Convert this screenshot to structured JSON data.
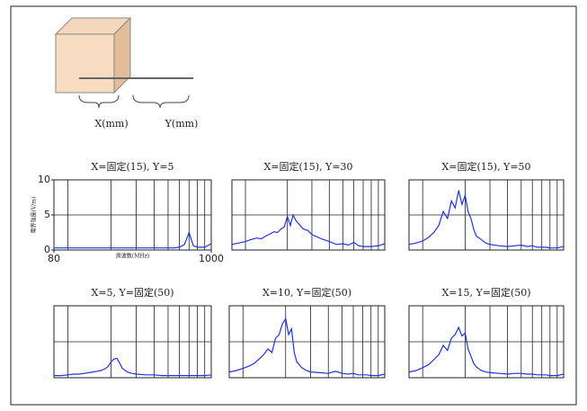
{
  "diagram": {
    "x_label": "X(mm)",
    "y_label": "Y(mm)"
  },
  "chart_data": [
    {
      "type": "line",
      "title": "X=固定(15), Y=5",
      "log_x": true,
      "xlim": [
        80,
        1000
      ],
      "ylim": [
        0,
        10
      ],
      "xticks": [
        80,
        1000
      ],
      "yticks": [
        0,
        5,
        10
      ],
      "x_grid": [
        100,
        200,
        300,
        400,
        500,
        600,
        700,
        800,
        900
      ],
      "y_grid": [
        5
      ],
      "xlabel": "周波数(MHz)",
      "ylabel": "電界強度(V/m)",
      "color": "#2233dd",
      "x": [
        80,
        90,
        100,
        110,
        120,
        130,
        140,
        150,
        160,
        170,
        180,
        190,
        200,
        210,
        220,
        230,
        240,
        260,
        280,
        300,
        350,
        400,
        450,
        500,
        550,
        600,
        650,
        700,
        750,
        800,
        900,
        1000
      ],
      "values": [
        0.3,
        0.3,
        0.3,
        0.3,
        0.3,
        0.3,
        0.3,
        0.3,
        0.3,
        0.3,
        0.3,
        0.3,
        0.3,
        0.3,
        0.3,
        0.3,
        0.3,
        0.3,
        0.3,
        0.3,
        0.3,
        0.3,
        0.3,
        0.3,
        0.3,
        0.4,
        0.8,
        2.5,
        0.6,
        0.4,
        0.4,
        0.9
      ]
    },
    {
      "type": "line",
      "title": "X=固定(15), Y=30",
      "log_x": true,
      "xlim": [
        80,
        1000
      ],
      "ylim": [
        0,
        10
      ],
      "x_grid": [
        100,
        200,
        300,
        400,
        500,
        600,
        700,
        800,
        900
      ],
      "y_grid": [
        5
      ],
      "color": "#2233dd",
      "x": [
        80,
        90,
        100,
        110,
        120,
        130,
        140,
        150,
        160,
        170,
        180,
        190,
        200,
        210,
        220,
        230,
        240,
        260,
        280,
        300,
        350,
        400,
        450,
        500,
        550,
        600,
        650,
        700,
        750,
        800,
        900,
        1000
      ],
      "values": [
        0.8,
        1.0,
        1.2,
        1.5,
        1.7,
        1.6,
        2.0,
        2.3,
        2.6,
        2.5,
        3.0,
        3.3,
        4.8,
        3.5,
        5.0,
        4.2,
        3.8,
        3.0,
        2.8,
        2.2,
        1.6,
        1.2,
        0.8,
        0.9,
        0.7,
        1.1,
        0.6,
        0.5,
        0.5,
        0.5,
        0.6,
        0.9
      ]
    },
    {
      "type": "line",
      "title": "X=固定(15), Y=50",
      "log_x": true,
      "xlim": [
        80,
        1000
      ],
      "ylim": [
        0,
        10
      ],
      "x_grid": [
        100,
        200,
        300,
        400,
        500,
        600,
        700,
        800,
        900
      ],
      "y_grid": [
        5
      ],
      "color": "#2233dd",
      "x": [
        80,
        90,
        100,
        110,
        120,
        130,
        140,
        150,
        160,
        170,
        180,
        190,
        200,
        210,
        220,
        230,
        240,
        260,
        280,
        300,
        350,
        400,
        450,
        500,
        550,
        600,
        650,
        700,
        750,
        800,
        900,
        1000
      ],
      "values": [
        0.8,
        1.0,
        1.3,
        1.8,
        2.5,
        3.5,
        5.5,
        4.5,
        7.0,
        6.0,
        8.5,
        6.5,
        7.8,
        5.5,
        4.5,
        3.0,
        2.0,
        1.5,
        1.0,
        0.8,
        0.6,
        0.5,
        0.6,
        0.7,
        0.5,
        0.6,
        0.4,
        0.4,
        0.4,
        0.3,
        0.3,
        0.5
      ]
    },
    {
      "type": "line",
      "title": "X=5, Y=固定(50)",
      "log_x": true,
      "xlim": [
        80,
        1000
      ],
      "ylim": [
        0,
        10
      ],
      "x_grid": [
        100,
        200,
        300,
        400,
        500,
        600,
        700,
        800,
        900
      ],
      "y_grid": [
        5
      ],
      "color": "#2233dd",
      "x": [
        80,
        90,
        100,
        110,
        120,
        130,
        140,
        150,
        160,
        170,
        180,
        190,
        200,
        210,
        220,
        230,
        240,
        260,
        280,
        300,
        350,
        400,
        450,
        500,
        550,
        600,
        650,
        700,
        750,
        800,
        900,
        1000
      ],
      "values": [
        0.3,
        0.3,
        0.4,
        0.5,
        0.5,
        0.6,
        0.7,
        0.8,
        0.9,
        1.0,
        1.2,
        1.5,
        2.2,
        2.6,
        2.7,
        2.0,
        1.3,
        0.8,
        0.6,
        0.5,
        0.4,
        0.4,
        0.3,
        0.3,
        0.3,
        0.3,
        0.3,
        0.3,
        0.3,
        0.3,
        0.3,
        0.4
      ]
    },
    {
      "type": "line",
      "title": "X=10, Y=固定(50)",
      "log_x": true,
      "xlim": [
        80,
        1000
      ],
      "ylim": [
        0,
        10
      ],
      "x_grid": [
        100,
        200,
        300,
        400,
        500,
        600,
        700,
        800,
        900
      ],
      "y_grid": [
        5
      ],
      "color": "#2233dd",
      "x": [
        80,
        90,
        100,
        110,
        120,
        130,
        140,
        150,
        160,
        170,
        180,
        190,
        200,
        210,
        220,
        230,
        240,
        260,
        280,
        300,
        350,
        400,
        450,
        500,
        550,
        600,
        650,
        700,
        750,
        800,
        900,
        1000
      ],
      "values": [
        0.8,
        1.0,
        1.3,
        1.6,
        2.0,
        2.6,
        3.2,
        4.0,
        3.5,
        5.5,
        6.0,
        7.5,
        8.2,
        6.0,
        6.8,
        3.5,
        2.2,
        1.4,
        1.0,
        0.8,
        0.7,
        0.6,
        0.9,
        0.6,
        0.5,
        0.6,
        0.4,
        0.4,
        0.4,
        0.3,
        0.3,
        0.5
      ]
    },
    {
      "type": "line",
      "title": "X=15, Y=固定(50)",
      "log_x": true,
      "xlim": [
        80,
        1000
      ],
      "ylim": [
        0,
        10
      ],
      "x_grid": [
        100,
        200,
        300,
        400,
        500,
        600,
        700,
        800,
        900
      ],
      "y_grid": [
        5
      ],
      "color": "#2233dd",
      "x": [
        80,
        90,
        100,
        110,
        120,
        130,
        140,
        150,
        160,
        170,
        180,
        190,
        200,
        210,
        220,
        230,
        240,
        260,
        280,
        300,
        350,
        400,
        450,
        500,
        550,
        600,
        650,
        700,
        750,
        800,
        900,
        1000
      ],
      "values": [
        0.8,
        1.0,
        1.4,
        1.8,
        2.5,
        3.2,
        4.5,
        3.8,
        5.5,
        6.0,
        7.0,
        5.8,
        6.2,
        4.0,
        3.0,
        2.0,
        1.5,
        1.0,
        0.8,
        0.7,
        0.6,
        0.5,
        0.6,
        0.6,
        0.5,
        0.5,
        0.4,
        0.4,
        0.4,
        0.3,
        0.3,
        0.5
      ]
    }
  ]
}
